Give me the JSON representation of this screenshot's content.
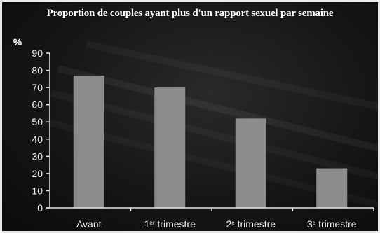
{
  "chart_data": {
    "type": "bar",
    "title": "Proportion de couples ayant plus d'un rapport  sexuel par semaine",
    "ylabel": "%",
    "xlabel": "",
    "ylim": [
      0,
      90
    ],
    "yticks": [
      0,
      10,
      20,
      30,
      40,
      50,
      60,
      70,
      80,
      90
    ],
    "categories": [
      {
        "main": "Avant",
        "sup": "",
        "rest": ""
      },
      {
        "main": "1",
        "sup": "er",
        "rest": " trimestre"
      },
      {
        "main": "2",
        "sup": "e",
        "rest": " trimestre"
      },
      {
        "main": "3",
        "sup": "e",
        "rest": " trimestre"
      }
    ],
    "values": [
      77,
      70,
      52,
      23
    ],
    "colors": {
      "bar": "#8c8c8c",
      "axis": "#e6e6e6",
      "text": "#f0f0f0",
      "background": "#161616"
    }
  }
}
